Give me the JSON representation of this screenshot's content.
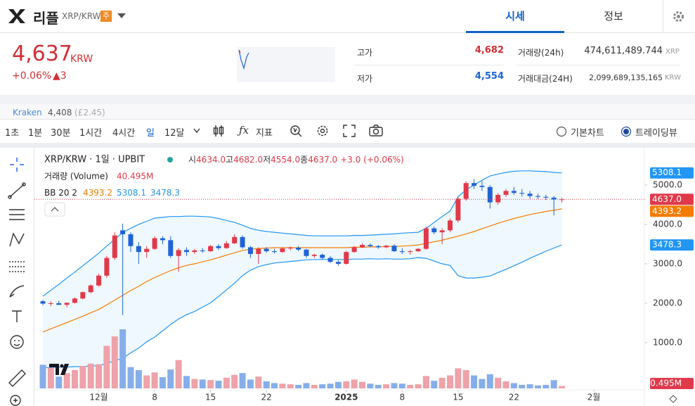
{
  "header": {
    "coin_name": "리플",
    "pair": "XRP/KRW",
    "badge": "주",
    "tabs": [
      "시세",
      "정보"
    ]
  },
  "price": {
    "value": "4,637",
    "unit": "KRW",
    "change_rate": "+0.06%",
    "change": "▲3"
  },
  "stats": {
    "high_label": "고가",
    "high": "4,682",
    "low_label": "저가",
    "low": "4,554",
    "volume_label": "거래량(24h)",
    "volume": "474,611,489.744",
    "volume_unit": "XRP",
    "amount_label": "거래대금(24H)",
    "amount": "2,099,689,135,165",
    "amount_unit": "KRW"
  },
  "exchange": {
    "name": "Kraken",
    "price": "4,408",
    "fx": "(£2.45)"
  },
  "toolbar": {
    "intervals": [
      "1초",
      "1분",
      "30분",
      "1시간",
      "4시간",
      "일",
      "12달"
    ],
    "indicators": "지표",
    "chart_modes": [
      "기본차트",
      "트레이딩뷰"
    ]
  },
  "chart_data": {
    "type": "candlestick",
    "legend": {
      "symbol": "XRP/KRW · 1일 · UPBIT",
      "open_label": "시",
      "open": "4634.0",
      "high_label": "고",
      "high": "4682.0",
      "low_label": "저",
      "low": "4554.0",
      "close_label": "종",
      "close": "4637.0",
      "change": "+3.0 (+0.06%)",
      "volume_label": "거래량 (Volume)",
      "volume": "40.495M",
      "bb_label": "BB 20 2",
      "bb_middle": "4393.2",
      "bb_upper": "5308.1",
      "bb_lower": "3478.3"
    },
    "categories": [
      null,
      null,
      null,
      null,
      null,
      null,
      null,
      "12월",
      null,
      null,
      null,
      null,
      null,
      null,
      "8",
      null,
      null,
      null,
      null,
      null,
      null,
      "15",
      null,
      null,
      null,
      null,
      null,
      null,
      "22",
      null,
      null,
      null,
      null,
      null,
      null,
      null,
      null,
      null,
      "2025",
      null,
      null,
      null,
      null,
      null,
      null,
      "8",
      null,
      null,
      null,
      null,
      null,
      null,
      "15",
      null,
      null,
      null,
      null,
      null,
      null,
      "22",
      null,
      null,
      null,
      null,
      null,
      null,
      null,
      null,
      null,
      "2월"
    ],
    "open": [
      2050,
      1990,
      2000,
      1960,
      2010,
      2120,
      2280,
      2450,
      2700,
      3150,
      3850,
      3750,
      3450,
      3300,
      3380,
      3650,
      3600,
      3200,
      3350,
      3300,
      3340,
      3320,
      3450,
      3400,
      3520,
      3680,
      3420,
      3250,
      3380,
      3320,
      3300,
      3390,
      3410,
      3360,
      3200,
      3230,
      3150,
      3050,
      3000,
      3300,
      3420,
      3480,
      3450,
      3420,
      3460,
      3320,
      3300,
      3320,
      3380,
      3900,
      3800,
      3850,
      4100,
      4650,
      5050,
      4980,
      4950,
      4560,
      4750,
      4850,
      4800,
      4780,
      4720,
      4700,
      4680,
      4634,
      null,
      null,
      null,
      null
    ],
    "high": [
      2080,
      2050,
      2060,
      2020,
      2150,
      2300,
      2480,
      2750,
      3200,
      3800,
      4020,
      3800,
      3550,
      3450,
      3700,
      3700,
      3700,
      3400,
      3420,
      3380,
      3400,
      3480,
      3500,
      3580,
      3750,
      3720,
      3450,
      3420,
      3420,
      3380,
      3420,
      3440,
      3450,
      3380,
      3260,
      3260,
      3200,
      3100,
      3330,
      3450,
      3520,
      3520,
      3480,
      3480,
      3500,
      3400,
      3350,
      3400,
      3950,
      3950,
      3900,
      4150,
      4700,
      5100,
      5150,
      5100,
      5000,
      4800,
      4900,
      4950,
      4900,
      4850,
      4780,
      4750,
      4720,
      4682,
      null,
      null,
      null,
      null
    ],
    "low": [
      1950,
      1930,
      1960,
      1900,
      1990,
      2100,
      2250,
      2420,
      2650,
      3100,
      1700,
      3300,
      3000,
      3150,
      3350,
      3500,
      3150,
      2800,
      3200,
      3250,
      3280,
      3300,
      3350,
      3380,
      3500,
      3380,
      3150,
      3000,
      3280,
      3260,
      3280,
      3340,
      3320,
      3150,
      3150,
      3120,
      3020,
      2950,
      2980,
      3280,
      3400,
      3420,
      3380,
      3400,
      3300,
      3250,
      3240,
      3300,
      3360,
      3750,
      3500,
      3800,
      4050,
      4600,
      4900,
      4850,
      4400,
      4500,
      4700,
      4750,
      4700,
      4650,
      4650,
      4620,
      4230,
      4554,
      null,
      null,
      null,
      null
    ],
    "close": [
      1990,
      2000,
      1960,
      2010,
      2120,
      2280,
      2450,
      2700,
      3150,
      3720,
      3750,
      3450,
      3300,
      3380,
      3650,
      3600,
      3200,
      3350,
      3300,
      3340,
      3320,
      3450,
      3400,
      3520,
      3680,
      3420,
      3250,
      3380,
      3320,
      3300,
      3390,
      3410,
      3360,
      3200,
      3230,
      3150,
      3050,
      3000,
      3300,
      3420,
      3480,
      3450,
      3420,
      3460,
      3320,
      3300,
      3320,
      3380,
      3900,
      3800,
      3850,
      4100,
      4650,
      5050,
      4980,
      4950,
      4560,
      4750,
      4850,
      4800,
      4780,
      4720,
      4700,
      4680,
      4634,
      4637,
      null,
      null,
      null,
      null
    ],
    "volume": [
      400,
      350,
      200,
      260,
      310,
      380,
      420,
      410,
      720,
      880,
      1000,
      360,
      310,
      220,
      270,
      190,
      320,
      480,
      210,
      160,
      150,
      140,
      130,
      180,
      230,
      260,
      150,
      200,
      120,
      90,
      80,
      70,
      60,
      90,
      60,
      70,
      80,
      110,
      120,
      150,
      110,
      80,
      60,
      70,
      90,
      80,
      60,
      70,
      210,
      130,
      180,
      220,
      340,
      310,
      220,
      160,
      240,
      180,
      120,
      90,
      60,
      70,
      50,
      60,
      140,
      40.495,
      null,
      null,
      null,
      null
    ],
    "bb_upper": [
      2180,
      2330,
      2480,
      2640,
      2790,
      2950,
      3110,
      3270,
      3450,
      3620,
      3800,
      3900,
      4000,
      4080,
      4160,
      4180,
      4200,
      4200,
      4210,
      4210,
      4200,
      4190,
      4150,
      4100,
      4050,
      3980,
      3900,
      3850,
      3820,
      3800,
      3780,
      3760,
      3740,
      3720,
      3710,
      3710,
      3710,
      3710,
      3710,
      3720,
      3720,
      3730,
      3740,
      3750,
      3760,
      3780,
      3790,
      3800,
      3900,
      4050,
      4200,
      4340,
      4700,
      4880,
      5000,
      5120,
      5230,
      5280,
      5320,
      5350,
      5360,
      5360,
      5350,
      5340,
      5320,
      5308.1,
      null,
      null,
      null,
      null
    ],
    "bb_middle": [
      1270,
      1350,
      1430,
      1510,
      1590,
      1670,
      1760,
      1840,
      1960,
      2080,
      2200,
      2320,
      2430,
      2550,
      2650,
      2740,
      2830,
      2900,
      2960,
      3000,
      3050,
      3100,
      3160,
      3220,
      3280,
      3340,
      3370,
      3390,
      3400,
      3410,
      3410,
      3410,
      3410,
      3410,
      3410,
      3410,
      3410,
      3410,
      3410,
      3420,
      3420,
      3430,
      3430,
      3440,
      3440,
      3450,
      3460,
      3480,
      3520,
      3560,
      3600,
      3650,
      3700,
      3760,
      3820,
      3890,
      3960,
      4030,
      4090,
      4150,
      4200,
      4250,
      4290,
      4330,
      4360,
      4393.2,
      null,
      null,
      null,
      null
    ],
    "bb_lower": [
      360,
      370,
      380,
      380,
      390,
      390,
      410,
      410,
      470,
      540,
      600,
      740,
      860,
      1020,
      1140,
      1300,
      1460,
      1600,
      1710,
      1790,
      1900,
      2010,
      2170,
      2340,
      2510,
      2700,
      2840,
      2930,
      2980,
      3020,
      3040,
      3060,
      3080,
      3100,
      3110,
      3110,
      3110,
      3110,
      3110,
      3120,
      3120,
      3130,
      3120,
      3130,
      3120,
      3120,
      3130,
      3160,
      3140,
      3070,
      3000,
      2960,
      2700,
      2640,
      2640,
      2660,
      2690,
      2780,
      2860,
      2950,
      3040,
      3140,
      3230,
      3320,
      3400,
      3478.3,
      null,
      null,
      null,
      null
    ],
    "ylim": [
      -180,
      5910
    ],
    "yticks": [
      {
        "value": 1000,
        "label": "1000.0"
      },
      {
        "value": 2000,
        "label": "2000.0"
      },
      {
        "value": 3000,
        "label": "3000.0"
      },
      {
        "value": 4000,
        "label": "4000.0"
      },
      {
        "value": 5000,
        "label": "5000.0"
      }
    ],
    "volume_lim": [
      0,
      4060
    ],
    "colors": {
      "up": "#e0394a",
      "down": "#1f63d6",
      "up_volume": "#eea2a9",
      "down_volume": "#86aeea",
      "bb": "#2196f3",
      "bb_middle": "#f57c00"
    }
  }
}
